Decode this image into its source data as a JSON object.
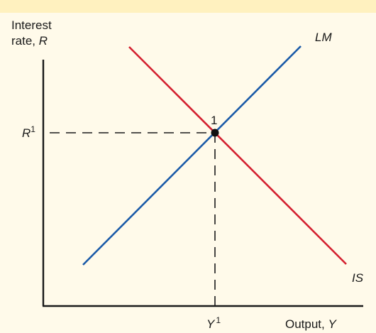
{
  "chart_data": {
    "type": "diagram",
    "y_axis_label_line1": "Interest",
    "y_axis_label_line2_text": "rate, ",
    "y_axis_label_line2_var": "R",
    "x_axis_label_text": "Output, ",
    "x_axis_label_var": "Y",
    "curves": [
      {
        "name": "LM",
        "label": "LM",
        "color": "#1a5aa8",
        "slope": "upward"
      },
      {
        "name": "IS",
        "label": "IS",
        "color": "#d42030",
        "slope": "downward"
      }
    ],
    "equilibrium": {
      "point_label": "1",
      "r_var": "R",
      "r_sup": "1",
      "y_var": "Y",
      "y_sup": "1"
    }
  },
  "colors": {
    "background": "#fffaea",
    "top_band": "#fff1bf",
    "axis": "#1a1a1a"
  }
}
